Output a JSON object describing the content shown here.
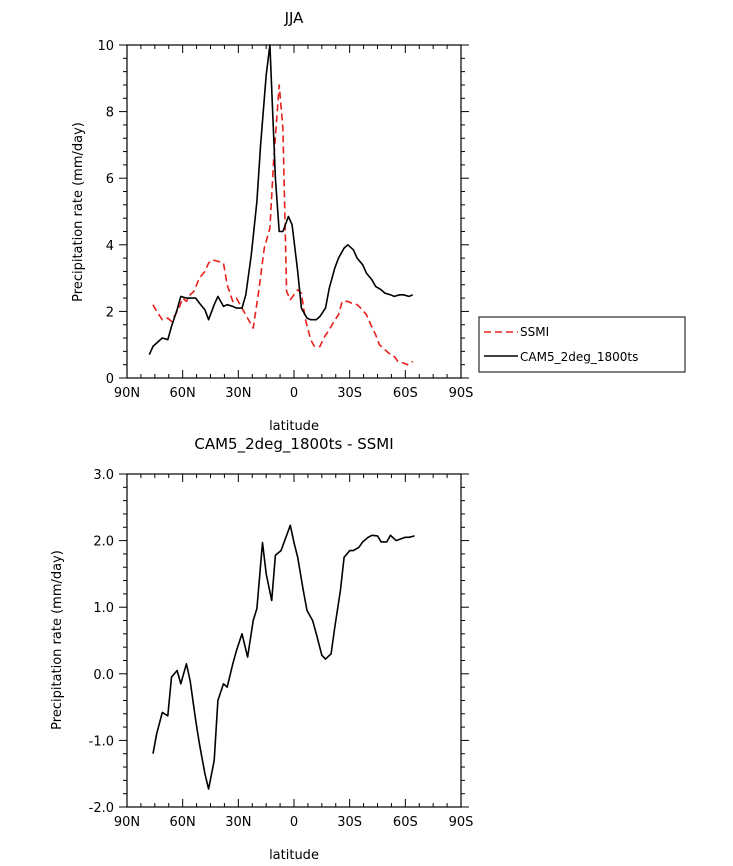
{
  "chart_data": [
    {
      "type": "line",
      "title": "JJA",
      "xlabel": "latitude",
      "ylabel": "Precipitation rate (mm/day)",
      "xlim": [
        90,
        -90
      ],
      "ylim": [
        0,
        10
      ],
      "x_ticks": [
        90,
        60,
        30,
        0,
        -30,
        -60,
        -90
      ],
      "x_tick_labels": [
        "90N",
        "60N",
        "30N",
        "0",
        "30S",
        "60S",
        "90S"
      ],
      "y_ticks": [
        0,
        2,
        4,
        6,
        8,
        10
      ],
      "y_tick_labels": [
        "0",
        "2",
        "4",
        "6",
        "8",
        "10"
      ],
      "legend_position": "right",
      "series": [
        {
          "name": "SSMI",
          "color": "#e8201a",
          "dash": "dashed",
          "x": [
            76,
            74,
            71,
            68,
            66,
            62,
            60,
            58,
            56,
            54,
            51,
            48,
            46,
            44,
            41,
            38,
            36,
            33,
            31,
            28,
            25,
            22,
            19,
            16,
            13,
            11,
            8,
            6,
            4,
            2,
            0,
            -2,
            -4,
            -6,
            -9,
            -11,
            -14,
            -16,
            -19,
            -21,
            -24,
            -26,
            -29,
            -31,
            -34,
            -36,
            -39,
            -41,
            -44,
            -46,
            -49,
            -51,
            -54,
            -56,
            -59,
            -61,
            -64
          ],
          "values": [
            2.2,
            2.0,
            1.75,
            1.8,
            1.7,
            2.1,
            2.4,
            2.3,
            2.5,
            2.6,
            3.0,
            3.2,
            3.45,
            3.55,
            3.5,
            3.45,
            2.8,
            2.3,
            2.4,
            2.1,
            1.8,
            1.5,
            2.6,
            3.9,
            4.5,
            6.5,
            8.8,
            7.5,
            2.6,
            2.35,
            2.5,
            2.65,
            2.55,
            1.8,
            1.15,
            0.95,
            0.95,
            1.2,
            1.45,
            1.65,
            1.9,
            2.3,
            2.3,
            2.25,
            2.2,
            2.1,
            1.9,
            1.65,
            1.3,
            1.0,
            0.85,
            0.75,
            0.65,
            0.5,
            0.45,
            0.4,
            0.5
          ]
        },
        {
          "name": "CAM5_2deg_1800ts",
          "color": "#000000",
          "dash": "solid",
          "x": [
            78,
            76,
            73,
            71,
            68,
            66,
            63,
            61,
            58,
            56,
            53,
            51,
            48,
            46,
            43,
            41,
            38,
            36,
            33,
            31,
            28,
            26,
            23,
            20,
            18,
            15,
            13,
            10,
            8,
            6,
            3,
            1,
            -2,
            -4,
            -7,
            -9,
            -12,
            -14,
            -17,
            -19,
            -22,
            -24,
            -27,
            -29,
            -32,
            -34,
            -37,
            -39,
            -42,
            -44,
            -47,
            -49,
            -52,
            -54,
            -57,
            -59,
            -62,
            -64
          ],
          "values": [
            0.7,
            0.95,
            1.1,
            1.2,
            1.15,
            1.55,
            2.05,
            2.45,
            2.4,
            2.4,
            2.4,
            2.25,
            2.05,
            1.75,
            2.2,
            2.45,
            2.15,
            2.2,
            2.15,
            2.1,
            2.1,
            2.5,
            3.7,
            5.3,
            7.0,
            9.1,
            10.0,
            6.0,
            4.4,
            4.4,
            4.85,
            4.6,
            3.2,
            2.1,
            1.8,
            1.75,
            1.75,
            1.85,
            2.1,
            2.7,
            3.3,
            3.6,
            3.9,
            4.0,
            3.85,
            3.6,
            3.4,
            3.15,
            2.95,
            2.75,
            2.65,
            2.55,
            2.5,
            2.45,
            2.5,
            2.5,
            2.45,
            2.5
          ]
        }
      ]
    },
    {
      "type": "line",
      "title": "CAM5_2deg_1800ts - SSMI",
      "xlabel": "latitude",
      "ylabel": "Precipitation rate (mm/day)",
      "xlim": [
        90,
        -90
      ],
      "ylim": [
        -2.0,
        3.0
      ],
      "x_ticks": [
        90,
        60,
        30,
        0,
        -30,
        -60,
        -90
      ],
      "x_tick_labels": [
        "90N",
        "60N",
        "30N",
        "0",
        "30S",
        "60S",
        "90S"
      ],
      "y_ticks": [
        -2,
        -1,
        0,
        1,
        2,
        3
      ],
      "y_tick_labels": [
        "-2.0",
        "-1.0",
        "0.0",
        "1.0",
        "2.0",
        "3.0"
      ],
      "series": [
        {
          "color": "#000000",
          "dash": "solid",
          "x": [
            76,
            74,
            71,
            68,
            66,
            63,
            61,
            58,
            56,
            53,
            51,
            48,
            46,
            43,
            41,
            38,
            36,
            33,
            31,
            28,
            25,
            22,
            20,
            17,
            15,
            12,
            10,
            7,
            5,
            2,
            0,
            -2,
            -5,
            -7,
            -10,
            -12,
            -15,
            -17,
            -20,
            -22,
            -25,
            -27,
            -30,
            -32,
            -35,
            -37,
            -40,
            -42,
            -45,
            -47,
            -50,
            -52,
            -55,
            -57,
            -60,
            -62,
            -65
          ],
          "values": [
            -1.2,
            -0.9,
            -0.58,
            -0.63,
            -0.05,
            0.05,
            -0.15,
            0.15,
            -0.1,
            -0.7,
            -1.05,
            -1.5,
            -1.73,
            -1.3,
            -0.4,
            -0.15,
            -0.2,
            0.15,
            0.35,
            0.6,
            0.25,
            0.8,
            0.98,
            1.97,
            1.5,
            1.1,
            1.78,
            1.85,
            2.0,
            2.23,
            1.97,
            1.75,
            1.25,
            0.95,
            0.8,
            0.6,
            0.28,
            0.22,
            0.3,
            0.7,
            1.25,
            1.75,
            1.85,
            1.85,
            1.9,
            1.98,
            2.05,
            2.08,
            2.07,
            1.98,
            1.98,
            2.08,
            2.0,
            2.02,
            2.05,
            2.05,
            2.07
          ]
        }
      ]
    }
  ]
}
